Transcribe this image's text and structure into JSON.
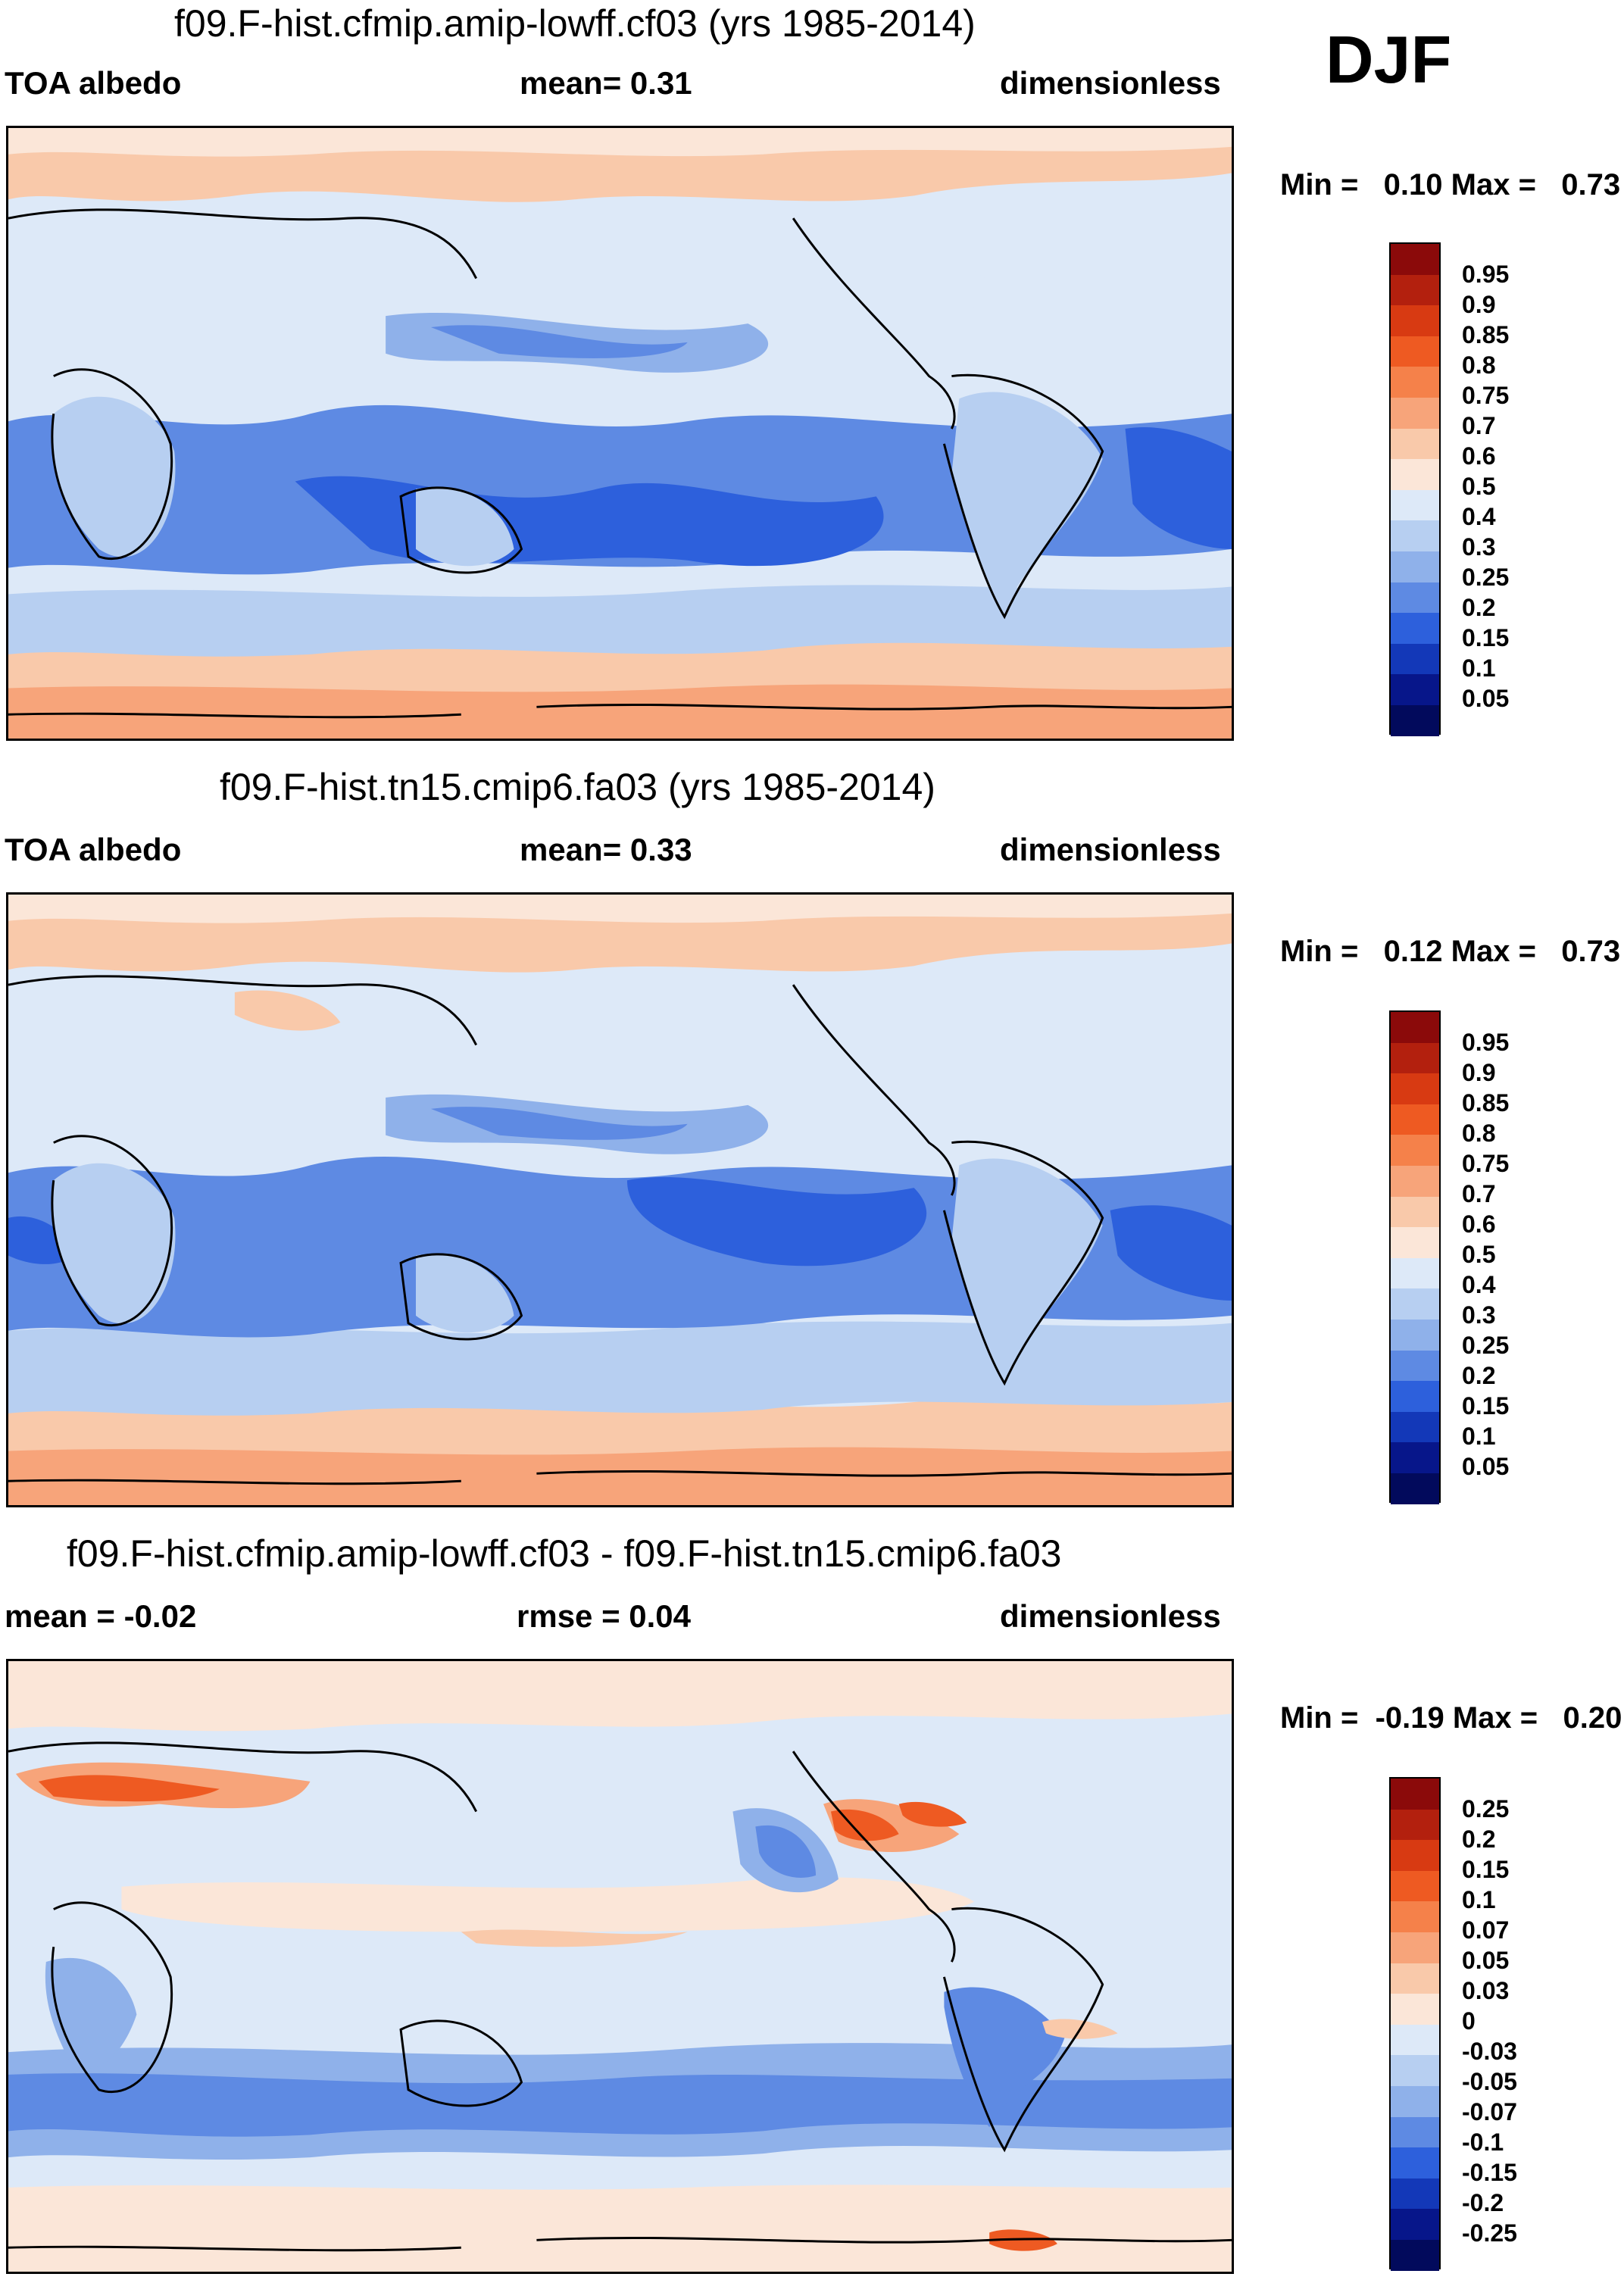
{
  "season": "DJF",
  "panels": [
    {
      "title": "f09.F-hist.cfmip.amip-lowff.cf03 (yrs 1985-2014)",
      "left_label": "TOA albedo",
      "center_label": "mean=   0.31",
      "right_label": "dimensionless",
      "minmax": "Min =   0.10 Max =   0.73",
      "colorbar_levels": [
        "0.95",
        "0.9",
        "0.85",
        "0.8",
        "0.75",
        "0.7",
        "0.6",
        "0.5",
        "0.4",
        "0.3",
        "0.25",
        "0.2",
        "0.15",
        "0.1",
        "0.05"
      ],
      "colorbar_colors": [
        "#8b0a0a",
        "#b3200e",
        "#d83a12",
        "#ee5a22",
        "#f5814a",
        "#f7a47a",
        "#f9c9aa",
        "#fbe6d8",
        "#dde9f8",
        "#b7cff1",
        "#8fb1ea",
        "#5e8ae3",
        "#2d60dc",
        "#1338b8",
        "#07168a",
        "#020a5c"
      ]
    },
    {
      "title": "f09.F-hist.tn15.cmip6.fa03 (yrs 1985-2014)",
      "left_label": "TOA albedo",
      "center_label": "mean=   0.33",
      "right_label": "dimensionless",
      "minmax": "Min =   0.12 Max =   0.73",
      "colorbar_levels": [
        "0.95",
        "0.9",
        "0.85",
        "0.8",
        "0.75",
        "0.7",
        "0.6",
        "0.5",
        "0.4",
        "0.3",
        "0.25",
        "0.2",
        "0.15",
        "0.1",
        "0.05"
      ],
      "colorbar_colors": [
        "#8b0a0a",
        "#b3200e",
        "#d83a12",
        "#ee5a22",
        "#f5814a",
        "#f7a47a",
        "#f9c9aa",
        "#fbe6d8",
        "#dde9f8",
        "#b7cff1",
        "#8fb1ea",
        "#5e8ae3",
        "#2d60dc",
        "#1338b8",
        "#07168a",
        "#020a5c"
      ]
    },
    {
      "title": "f09.F-hist.cfmip.amip-lowff.cf03 - f09.F-hist.tn15.cmip6.fa03",
      "left_label": "mean =  -0.02",
      "center_label": "rmse =   0.04",
      "right_label": "dimensionless",
      "minmax": "Min =  -0.19 Max =   0.20",
      "colorbar_levels": [
        "0.25",
        "0.2",
        "0.15",
        "0.1",
        "0.07",
        "0.05",
        "0.03",
        "0",
        "-0.03",
        "-0.05",
        "-0.07",
        "-0.1",
        "-0.15",
        "-0.2",
        "-0.25"
      ],
      "colorbar_colors": [
        "#8b0a0a",
        "#b3200e",
        "#d83a12",
        "#ee5a22",
        "#f5814a",
        "#f7a47a",
        "#f9c9aa",
        "#fbe6d8",
        "#dde9f8",
        "#b7cff1",
        "#8fb1ea",
        "#5e8ae3",
        "#2d60dc",
        "#1338b8",
        "#07168a",
        "#020a5c"
      ]
    }
  ]
}
